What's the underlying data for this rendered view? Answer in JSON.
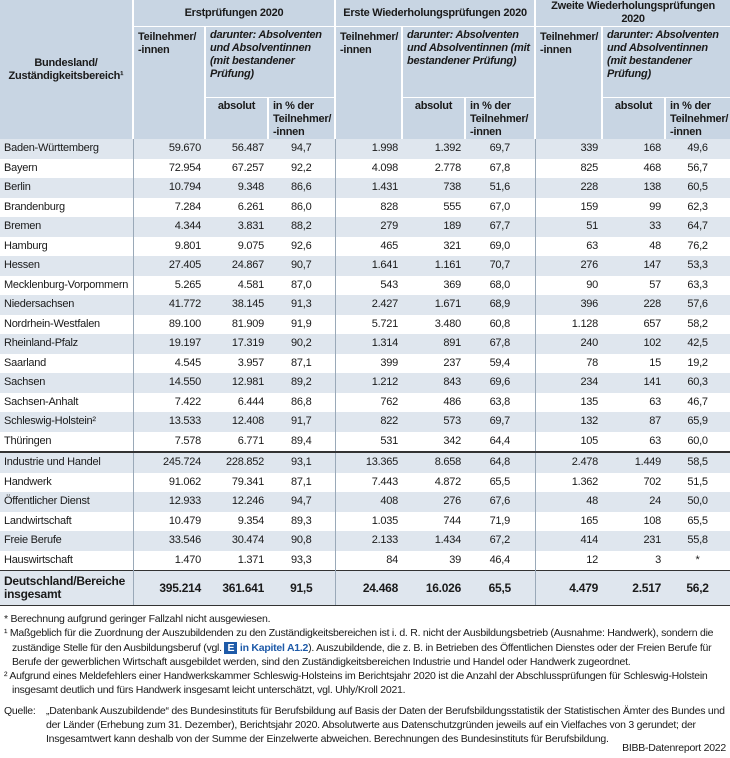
{
  "header": {
    "col0": "Bundesland/ Zuständigkeitsbereich¹",
    "groups": [
      "Erstprüfungen 2020",
      "Erste Wiederholungsprüfungen 2020",
      "Zweite Wiederholungsprüfungen 2020"
    ],
    "participants": "Teilnehmer/ -innen",
    "graduates": "darunter: Absolventen und Absolventinnen (mit bestandener Prüfung)",
    "absolute": "absolut",
    "percent": "in % der Teilnehmer/ -innen"
  },
  "states": [
    [
      "Baden-Württemberg",
      "59.670",
      "56.487",
      "94,7",
      "1.998",
      "1.392",
      "69,7",
      "339",
      "168",
      "49,6"
    ],
    [
      "Bayern",
      "72.954",
      "67.257",
      "92,2",
      "4.098",
      "2.778",
      "67,8",
      "825",
      "468",
      "56,7"
    ],
    [
      "Berlin",
      "10.794",
      "9.348",
      "86,6",
      "1.431",
      "738",
      "51,6",
      "228",
      "138",
      "60,5"
    ],
    [
      "Brandenburg",
      "7.284",
      "6.261",
      "86,0",
      "828",
      "555",
      "67,0",
      "159",
      "99",
      "62,3"
    ],
    [
      "Bremen",
      "4.344",
      "3.831",
      "88,2",
      "279",
      "189",
      "67,7",
      "51",
      "33",
      "64,7"
    ],
    [
      "Hamburg",
      "9.801",
      "9.075",
      "92,6",
      "465",
      "321",
      "69,0",
      "63",
      "48",
      "76,2"
    ],
    [
      "Hessen",
      "27.405",
      "24.867",
      "90,7",
      "1.641",
      "1.161",
      "70,7",
      "276",
      "147",
      "53,3"
    ],
    [
      "Mecklenburg-Vorpommern",
      "5.265",
      "4.581",
      "87,0",
      "543",
      "369",
      "68,0",
      "90",
      "57",
      "63,3"
    ],
    [
      "Niedersachsen",
      "41.772",
      "38.145",
      "91,3",
      "2.427",
      "1.671",
      "68,9",
      "396",
      "228",
      "57,6"
    ],
    [
      "Nordrhein-Westfalen",
      "89.100",
      "81.909",
      "91,9",
      "5.721",
      "3.480",
      "60,8",
      "1.128",
      "657",
      "58,2"
    ],
    [
      "Rheinland-Pfalz",
      "19.197",
      "17.319",
      "90,2",
      "1.314",
      "891",
      "67,8",
      "240",
      "102",
      "42,5"
    ],
    [
      "Saarland",
      "4.545",
      "3.957",
      "87,1",
      "399",
      "237",
      "59,4",
      "78",
      "15",
      "19,2"
    ],
    [
      "Sachsen",
      "14.550",
      "12.981",
      "89,2",
      "1.212",
      "843",
      "69,6",
      "234",
      "141",
      "60,3"
    ],
    [
      "Sachsen-Anhalt",
      "7.422",
      "6.444",
      "86,8",
      "762",
      "486",
      "63,8",
      "135",
      "63",
      "46,7"
    ],
    [
      "Schleswig-Holstein²",
      "13.533",
      "12.408",
      "91,7",
      "822",
      "573",
      "69,7",
      "132",
      "87",
      "65,9"
    ],
    [
      "Thüringen",
      "7.578",
      "6.771",
      "89,4",
      "531",
      "342",
      "64,4",
      "105",
      "63",
      "60,0"
    ]
  ],
  "sectors": [
    [
      "Industrie und Handel",
      "245.724",
      "228.852",
      "93,1",
      "13.365",
      "8.658",
      "64,8",
      "2.478",
      "1.449",
      "58,5"
    ],
    [
      "Handwerk",
      "91.062",
      "79.341",
      "87,1",
      "7.443",
      "4.872",
      "65,5",
      "1.362",
      "702",
      "51,5"
    ],
    [
      "Öffentlicher Dienst",
      "12.933",
      "12.246",
      "94,7",
      "408",
      "276",
      "67,6",
      "48",
      "24",
      "50,0"
    ],
    [
      "Landwirtschaft",
      "10.479",
      "9.354",
      "89,3",
      "1.035",
      "744",
      "71,9",
      "165",
      "108",
      "65,5"
    ],
    [
      "Freie Berufe",
      "33.546",
      "30.474",
      "90,8",
      "2.133",
      "1.434",
      "67,2",
      "414",
      "231",
      "55,8"
    ],
    [
      "Hauswirtschaft",
      "1.470",
      "1.371",
      "93,3",
      "84",
      "39",
      "46,4",
      "12",
      "3",
      "*"
    ]
  ],
  "total": [
    "Deutschland/Bereiche insgesamt",
    "395.214",
    "361.641",
    "91,5",
    "24.468",
    "16.026",
    "65,5",
    "4.479",
    "2.517",
    "56,2"
  ],
  "footnotes": {
    "star": "* Berechnung aufgrund geringer Fallzahl nicht ausgewiesen.",
    "one": {
      "before": "¹ Maßgeblich für die Zuordnung der Auszubildenden zu den Zuständigkeitsbereichen ist i. d. R. nicht der Ausbildungsbetrieb (Ausnahme: Handwerk), sondern die zuständige Stelle für den Ausbildungsberuf (vgl.",
      "icon": "E",
      "link": "in Kapitel A1.2",
      "after": "). Auszubildende, die z. B. in Betrieben des Öffentlichen Dienstes oder der Freien Berufe für Berufe der gewerblichen Wirtschaft ausgebildet werden, sind den Zuständigkeitsbereichen Industrie und Handel oder Handwerk zugeordnet."
    },
    "two": "² Aufgrund eines Meldefehlers einer Handwerkskammer Schleswig-Holsteins im Berichtsjahr 2020 ist die Anzahl der Abschlussprüfungen für Schleswig-Holstein insgesamt deutlich und fürs Handwerk insgesamt leicht unterschätzt, vgl. Uhly/Kroll 2021."
  },
  "source": {
    "label": "Quelle:",
    "text": "„Datenbank Auszubildende“ des Bundesinstituts für Berufsbildung auf Basis der Daten der Berufsbildungsstatistik der Statistischen Ämter des Bundes und der Länder (Erhebung zum 31. Dezember), Berichtsjahr 2020. Absolutwerte aus Datenschutzgründen jeweils auf ein Vielfaches von 3 gerundet; der Insgesamtwert kann deshalb von der Summe der Einzelwerte abweichen. Berechnungen des Bundesinstituts für Berufsbildung."
  },
  "credit": "BIBB-Datenreport 2022"
}
